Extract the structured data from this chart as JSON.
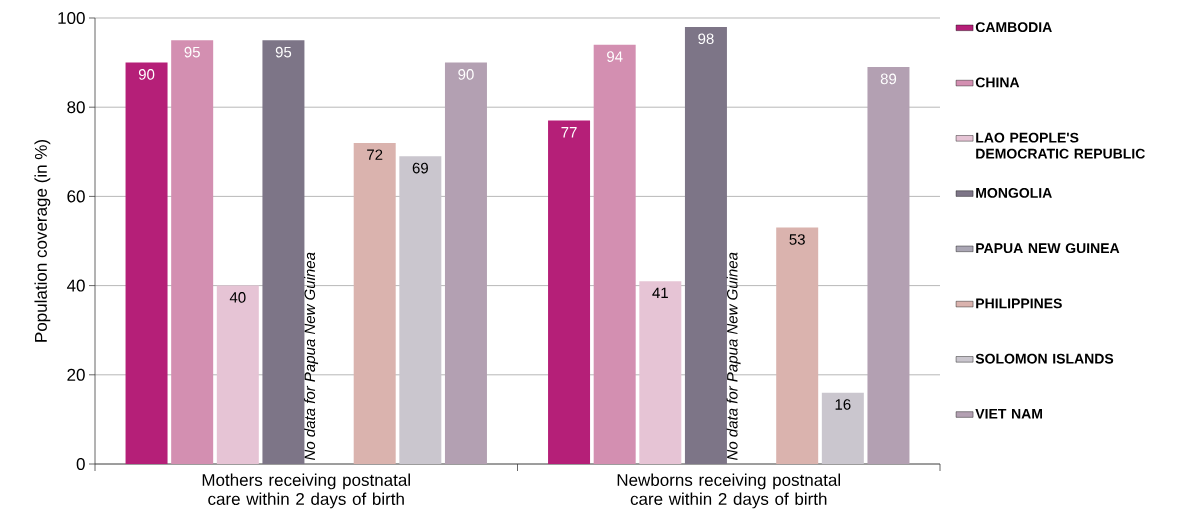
{
  "chart_data": {
    "type": "bar",
    "ylabel": "Population coverage (in %)",
    "categories": [
      "Mothers receiving postnatal care within 2 days of birth",
      "Newborns receiving postnatal care within 2 days of birth"
    ],
    "series": [
      {
        "name": "CAMBODIA",
        "color": "#b51f78",
        "values": [
          90,
          77
        ]
      },
      {
        "name": "CHINA",
        "color": "#d38fb1",
        "values": [
          95,
          94
        ]
      },
      {
        "name": "LAO PEOPLE'S DEMOCRATIC REPUBLIC",
        "color": "#e6c4d5",
        "values": [
          40,
          41
        ]
      },
      {
        "name": "MONGOLIA",
        "color": "#7d7587",
        "values": [
          95,
          98
        ]
      },
      {
        "name": "PAPUA NEW GUINEA",
        "color": "#aaa6b4",
        "values": [
          null,
          null
        ]
      },
      {
        "name": "PHILIPPINES",
        "color": "#dab3ae",
        "values": [
          72,
          53
        ]
      },
      {
        "name": "SOLOMON ISLANDS",
        "color": "#cac6ce",
        "values": [
          69,
          16
        ]
      },
      {
        "name": "VIET NAM",
        "color": "#b3a0b2",
        "values": [
          90,
          89
        ]
      }
    ],
    "annotations": [
      "No data for Papua New Guinea",
      "No data for Papua New Guinea"
    ],
    "ylim": [
      0,
      100
    ],
    "yticks": [
      0,
      20,
      40,
      60,
      80,
      100
    ],
    "grid": "y",
    "legend": "right",
    "data_labels": true
  }
}
